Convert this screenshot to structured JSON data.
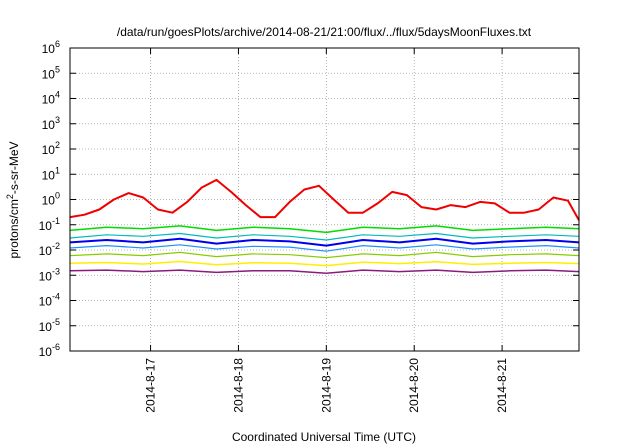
{
  "chart_data": {
    "type": "line",
    "title": "/data/run/goesPlots/archive/2014-08-21/21:00/flux/../flux/5daysMoonFluxes.txt",
    "xlabel": "Coordinated Universal Time (UTC)",
    "ylabel": {
      "prefix": "protons/cm",
      "sup": "2",
      "suffix": "-s-sr-MeV"
    },
    "yscale": "log",
    "ylim": [
      1e-06,
      1000000.0
    ],
    "yticks": [
      {
        "value": 1e-06,
        "base": "10",
        "exp": "-6"
      },
      {
        "value": 1e-05,
        "base": "10",
        "exp": "-5"
      },
      {
        "value": 0.0001,
        "base": "10",
        "exp": "-4"
      },
      {
        "value": 0.001,
        "base": "10",
        "exp": "-3"
      },
      {
        "value": 0.01,
        "base": "10",
        "exp": "-2"
      },
      {
        "value": 0.1,
        "base": "10",
        "exp": "-1"
      },
      {
        "value": 1,
        "base": "10",
        "exp": "0"
      },
      {
        "value": 10,
        "base": "10",
        "exp": "1"
      },
      {
        "value": 100,
        "base": "10",
        "exp": "2"
      },
      {
        "value": 1000,
        "base": "10",
        "exp": "3"
      },
      {
        "value": 10000,
        "base": "10",
        "exp": "4"
      },
      {
        "value": 100000,
        "base": "10",
        "exp": "5"
      },
      {
        "value": 1000000,
        "base": "10",
        "exp": "6"
      }
    ],
    "xlim": [
      "2014-08-16T02:00",
      "2014-08-21T21:00"
    ],
    "xticks": [
      {
        "value": "2014-08-17T00:00",
        "label": "2014-8-17"
      },
      {
        "value": "2014-08-18T00:00",
        "label": "2014-8-18"
      },
      {
        "value": "2014-08-19T00:00",
        "label": "2014-8-19"
      },
      {
        "value": "2014-08-20T00:00",
        "label": "2014-8-20"
      },
      {
        "value": "2014-08-21T00:00",
        "label": "2014-8-21"
      }
    ],
    "grid": true,
    "legend": "none",
    "series": [
      {
        "color": "#ee0000",
        "width": 2,
        "x": [
          "2014-08-16T02:00",
          "2014-08-16T06:00",
          "2014-08-16T10:00",
          "2014-08-16T14:00",
          "2014-08-16T18:00",
          "2014-08-16T22:00",
          "2014-08-17T02:00",
          "2014-08-17T06:00",
          "2014-08-17T10:00",
          "2014-08-17T14:00",
          "2014-08-17T18:00",
          "2014-08-17T22:00",
          "2014-08-18T02:00",
          "2014-08-18T06:00",
          "2014-08-18T10:00",
          "2014-08-18T14:00",
          "2014-08-18T18:00",
          "2014-08-18T22:00",
          "2014-08-19T02:00",
          "2014-08-19T06:00",
          "2014-08-19T10:00",
          "2014-08-19T14:00",
          "2014-08-19T18:00",
          "2014-08-19T22:00",
          "2014-08-20T02:00",
          "2014-08-20T06:00",
          "2014-08-20T10:00",
          "2014-08-20T14:00",
          "2014-08-20T18:00",
          "2014-08-20T22:00",
          "2014-08-21T02:00",
          "2014-08-21T06:00",
          "2014-08-21T10:00",
          "2014-08-21T14:00",
          "2014-08-21T18:00",
          "2014-08-21T21:00"
        ],
        "values": [
          0.2,
          0.25,
          0.4,
          1.0,
          1.8,
          1.2,
          0.4,
          0.3,
          0.8,
          3.0,
          6.0,
          2.0,
          0.6,
          0.2,
          0.2,
          0.8,
          2.5,
          3.5,
          1.0,
          0.3,
          0.3,
          0.7,
          2.0,
          1.5,
          0.5,
          0.4,
          0.6,
          0.5,
          0.8,
          0.7,
          0.3,
          0.3,
          0.4,
          1.2,
          0.9,
          0.15
        ]
      },
      {
        "color": "#00dd00",
        "width": 1.5,
        "x": [
          "2014-08-16T02:00",
          "2014-08-16T12:00",
          "2014-08-16T22:00",
          "2014-08-17T08:00",
          "2014-08-17T18:00",
          "2014-08-18T04:00",
          "2014-08-18T14:00",
          "2014-08-19T00:00",
          "2014-08-19T10:00",
          "2014-08-19T20:00",
          "2014-08-20T06:00",
          "2014-08-20T16:00",
          "2014-08-21T02:00",
          "2014-08-21T12:00",
          "2014-08-21T21:00"
        ],
        "values": [
          0.06,
          0.08,
          0.07,
          0.09,
          0.06,
          0.08,
          0.07,
          0.05,
          0.08,
          0.07,
          0.09,
          0.06,
          0.07,
          0.08,
          0.07
        ]
      },
      {
        "color": "#00bbbb",
        "width": 1.2,
        "x": [
          "2014-08-16T02:00",
          "2014-08-16T12:00",
          "2014-08-16T22:00",
          "2014-08-17T08:00",
          "2014-08-17T18:00",
          "2014-08-18T04:00",
          "2014-08-18T14:00",
          "2014-08-19T00:00",
          "2014-08-19T10:00",
          "2014-08-19T20:00",
          "2014-08-20T06:00",
          "2014-08-20T16:00",
          "2014-08-21T02:00",
          "2014-08-21T12:00",
          "2014-08-21T21:00"
        ],
        "values": [
          0.03,
          0.04,
          0.035,
          0.045,
          0.03,
          0.04,
          0.035,
          0.025,
          0.04,
          0.035,
          0.045,
          0.03,
          0.035,
          0.04,
          0.035
        ]
      },
      {
        "color": "#0000ee",
        "width": 2,
        "x": [
          "2014-08-16T02:00",
          "2014-08-16T12:00",
          "2014-08-16T22:00",
          "2014-08-17T08:00",
          "2014-08-17T18:00",
          "2014-08-18T04:00",
          "2014-08-18T14:00",
          "2014-08-19T00:00",
          "2014-08-19T10:00",
          "2014-08-19T20:00",
          "2014-08-20T06:00",
          "2014-08-20T16:00",
          "2014-08-21T02:00",
          "2014-08-21T12:00",
          "2014-08-21T21:00"
        ],
        "values": [
          0.02,
          0.025,
          0.02,
          0.028,
          0.018,
          0.025,
          0.022,
          0.015,
          0.025,
          0.02,
          0.028,
          0.018,
          0.022,
          0.025,
          0.02
        ]
      },
      {
        "color": "#1e90ff",
        "width": 1.2,
        "x": [
          "2014-08-16T02:00",
          "2014-08-16T12:00",
          "2014-08-16T22:00",
          "2014-08-17T08:00",
          "2014-08-17T18:00",
          "2014-08-18T04:00",
          "2014-08-18T14:00",
          "2014-08-19T00:00",
          "2014-08-19T10:00",
          "2014-08-19T20:00",
          "2014-08-20T06:00",
          "2014-08-20T16:00",
          "2014-08-21T02:00",
          "2014-08-21T12:00",
          "2014-08-21T21:00"
        ],
        "values": [
          0.012,
          0.015,
          0.012,
          0.016,
          0.011,
          0.014,
          0.013,
          0.009,
          0.015,
          0.012,
          0.016,
          0.011,
          0.013,
          0.015,
          0.012
        ]
      },
      {
        "color": "#88cc00",
        "width": 1.2,
        "x": [
          "2014-08-16T02:00",
          "2014-08-16T12:00",
          "2014-08-16T22:00",
          "2014-08-17T08:00",
          "2014-08-17T18:00",
          "2014-08-18T04:00",
          "2014-08-18T14:00",
          "2014-08-19T00:00",
          "2014-08-19T10:00",
          "2014-08-19T20:00",
          "2014-08-20T06:00",
          "2014-08-20T16:00",
          "2014-08-21T02:00",
          "2014-08-21T12:00",
          "2014-08-21T21:00"
        ],
        "values": [
          0.006,
          0.007,
          0.006,
          0.008,
          0.0055,
          0.007,
          0.0065,
          0.005,
          0.007,
          0.006,
          0.008,
          0.0055,
          0.0065,
          0.007,
          0.006
        ]
      },
      {
        "color": "#ffee00",
        "width": 1.5,
        "x": [
          "2014-08-16T02:00",
          "2014-08-16T12:00",
          "2014-08-16T22:00",
          "2014-08-17T08:00",
          "2014-08-17T18:00",
          "2014-08-18T04:00",
          "2014-08-18T14:00",
          "2014-08-19T00:00",
          "2014-08-19T10:00",
          "2014-08-19T20:00",
          "2014-08-20T06:00",
          "2014-08-20T16:00",
          "2014-08-21T02:00",
          "2014-08-21T12:00",
          "2014-08-21T21:00"
        ],
        "values": [
          0.003,
          0.0032,
          0.0028,
          0.0035,
          0.0026,
          0.0031,
          0.003,
          0.0024,
          0.0033,
          0.0029,
          0.0034,
          0.0027,
          0.003,
          0.0032,
          0.0029
        ]
      },
      {
        "color": "#8b1a7e",
        "width": 1.5,
        "x": [
          "2014-08-16T02:00",
          "2014-08-16T12:00",
          "2014-08-16T22:00",
          "2014-08-17T08:00",
          "2014-08-17T18:00",
          "2014-08-18T04:00",
          "2014-08-18T14:00",
          "2014-08-19T00:00",
          "2014-08-19T10:00",
          "2014-08-19T20:00",
          "2014-08-20T06:00",
          "2014-08-20T16:00",
          "2014-08-21T02:00",
          "2014-08-21T12:00",
          "2014-08-21T21:00"
        ],
        "values": [
          0.0015,
          0.0016,
          0.0014,
          0.0016,
          0.0013,
          0.0015,
          0.0015,
          0.0012,
          0.0016,
          0.0014,
          0.0016,
          0.0013,
          0.0015,
          0.0016,
          0.0014
        ]
      }
    ]
  }
}
